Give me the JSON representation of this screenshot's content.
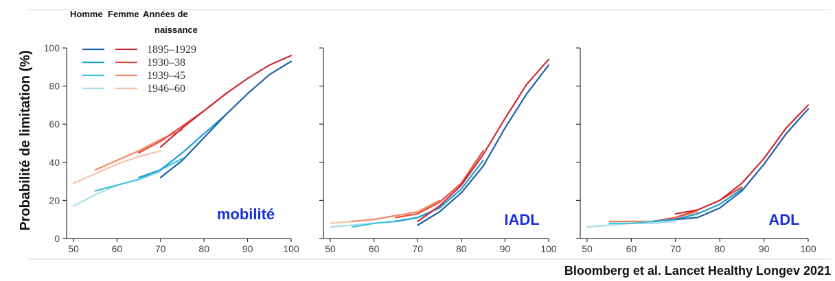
{
  "y_axis_label": "Probabilité de limitation (%)",
  "citation": "Bloomberg et al. Lancet Healthy Longev 2021",
  "legend": {
    "header_men": "Homme",
    "header_women": "Femme",
    "header_cohort_line1": "Années de",
    "header_cohort_line2": "naissance",
    "rows": [
      {
        "cohort": "1895–1929",
        "men_color": "#1f5fa8",
        "women_color": "#cc2a36"
      },
      {
        "cohort": "1930–38",
        "men_color": "#1aa0cf",
        "women_color": "#e8473b"
      },
      {
        "cohort": "1939–45",
        "men_color": "#3fc3db",
        "women_color": "#f08a66"
      },
      {
        "cohort": "1946–60",
        "men_color": "#a9dcee",
        "women_color": "#f7c2a8"
      }
    ]
  },
  "chart_data": [
    {
      "type": "line",
      "panel_label": "mobilité",
      "xlim": [
        50,
        100
      ],
      "ylim": [
        0,
        100
      ],
      "x_ticks": [
        50,
        60,
        70,
        80,
        90,
        100
      ],
      "y_ticks": [
        0,
        20,
        40,
        60,
        80,
        100
      ],
      "series": [
        {
          "sex": "men",
          "cohort": "1895–1929",
          "color": "#1f5fa8",
          "points": [
            [
              70,
              32
            ],
            [
              75,
              41
            ],
            [
              80,
              53
            ],
            [
              85,
              65
            ],
            [
              90,
              76
            ],
            [
              95,
              86
            ],
            [
              100,
              93
            ]
          ]
        },
        {
          "sex": "women",
          "cohort": "1895–1929",
          "color": "#cc2a36",
          "points": [
            [
              70,
              48
            ],
            [
              75,
              58
            ],
            [
              80,
              67
            ],
            [
              85,
              76
            ],
            [
              90,
              84
            ],
            [
              95,
              91
            ],
            [
              100,
              96
            ]
          ]
        },
        {
          "sex": "men",
          "cohort": "1930–38",
          "color": "#1aa0cf",
          "points": [
            [
              65,
              32
            ],
            [
              70,
              36
            ],
            [
              75,
              45
            ],
            [
              80,
              55
            ],
            [
              85,
              65
            ]
          ]
        },
        {
          "sex": "women",
          "cohort": "1930–38",
          "color": "#e8473b",
          "points": [
            [
              65,
              45
            ],
            [
              70,
              51
            ],
            [
              75,
              59
            ],
            [
              80,
              67
            ],
            [
              85,
              76
            ]
          ]
        },
        {
          "sex": "men",
          "cohort": "1939–45",
          "color": "#3fc3db",
          "points": [
            [
              55,
              25
            ],
            [
              60,
              28
            ],
            [
              65,
              31
            ],
            [
              70,
              36
            ],
            [
              75,
              42
            ]
          ]
        },
        {
          "sex": "women",
          "cohort": "1939–45",
          "color": "#f08a66",
          "points": [
            [
              55,
              36
            ],
            [
              60,
              41
            ],
            [
              65,
              46
            ],
            [
              70,
              52
            ],
            [
              75,
              57
            ]
          ]
        },
        {
          "sex": "men",
          "cohort": "1946–60",
          "color": "#a9dcee",
          "points": [
            [
              50,
              17
            ],
            [
              55,
              23
            ],
            [
              60,
              28
            ],
            [
              65,
              31
            ],
            [
              70,
              35
            ]
          ]
        },
        {
          "sex": "women",
          "cohort": "1946–60",
          "color": "#f7c2a8",
          "points": [
            [
              50,
              29
            ],
            [
              55,
              34
            ],
            [
              60,
              39
            ],
            [
              65,
              43
            ],
            [
              70,
              46
            ]
          ]
        }
      ]
    },
    {
      "type": "line",
      "panel_label": "IADL",
      "xlim": [
        50,
        100
      ],
      "ylim": [
        0,
        100
      ],
      "x_ticks": [
        50,
        60,
        70,
        80,
        90,
        100
      ],
      "y_ticks": [
        0,
        20,
        40,
        60,
        80,
        100
      ],
      "series": [
        {
          "sex": "men",
          "cohort": "1895–1929",
          "color": "#1f5fa8",
          "points": [
            [
              70,
              7
            ],
            [
              75,
              14
            ],
            [
              80,
              24
            ],
            [
              85,
              38
            ],
            [
              90,
              58
            ],
            [
              95,
              76
            ],
            [
              100,
              91
            ]
          ]
        },
        {
          "sex": "women",
          "cohort": "1895–1929",
          "color": "#cc2a36",
          "points": [
            [
              70,
              9
            ],
            [
              75,
              17
            ],
            [
              80,
              28
            ],
            [
              85,
              44
            ],
            [
              90,
              63
            ],
            [
              95,
              81
            ],
            [
              100,
              94
            ]
          ]
        },
        {
          "sex": "men",
          "cohort": "1930–38",
          "color": "#1aa0cf",
          "points": [
            [
              65,
              9
            ],
            [
              70,
              11
            ],
            [
              75,
              16
            ],
            [
              80,
              26
            ],
            [
              85,
              41
            ]
          ]
        },
        {
          "sex": "women",
          "cohort": "1930–38",
          "color": "#e8473b",
          "points": [
            [
              65,
              11
            ],
            [
              70,
              13
            ],
            [
              75,
              19
            ],
            [
              80,
              29
            ],
            [
              85,
              46
            ]
          ]
        },
        {
          "sex": "men",
          "cohort": "1939–45",
          "color": "#3fc3db",
          "points": [
            [
              55,
              6
            ],
            [
              60,
              8
            ],
            [
              65,
              9
            ],
            [
              70,
              11
            ],
            [
              75,
              16
            ]
          ]
        },
        {
          "sex": "women",
          "cohort": "1939–45",
          "color": "#f08a66",
          "points": [
            [
              55,
              9
            ],
            [
              60,
              10
            ],
            [
              65,
              12
            ],
            [
              70,
              14
            ],
            [
              75,
              20
            ]
          ]
        },
        {
          "sex": "men",
          "cohort": "1946–60",
          "color": "#a9dcee",
          "points": [
            [
              50,
              6
            ],
            [
              55,
              7
            ],
            [
              60,
              8
            ],
            [
              65,
              9
            ],
            [
              70,
              11
            ]
          ]
        },
        {
          "sex": "women",
          "cohort": "1946–60",
          "color": "#f7c2a8",
          "points": [
            [
              50,
              8
            ],
            [
              55,
              9
            ],
            [
              60,
              10
            ],
            [
              65,
              12
            ],
            [
              70,
              14
            ]
          ]
        }
      ]
    },
    {
      "type": "line",
      "panel_label": "ADL",
      "xlim": [
        50,
        100
      ],
      "ylim": [
        0,
        100
      ],
      "x_ticks": [
        50,
        60,
        70,
        80,
        90,
        100
      ],
      "y_ticks": [
        0,
        20,
        40,
        60,
        80,
        100
      ],
      "series": [
        {
          "sex": "men",
          "cohort": "1895–1929",
          "color": "#1f5fa8",
          "points": [
            [
              70,
              10
            ],
            [
              75,
              11
            ],
            [
              80,
              16
            ],
            [
              85,
              25
            ],
            [
              90,
              39
            ],
            [
              95,
              55
            ],
            [
              100,
              68
            ]
          ]
        },
        {
          "sex": "women",
          "cohort": "1895–1929",
          "color": "#cc2a36",
          "points": [
            [
              70,
              13
            ],
            [
              75,
              15
            ],
            [
              80,
              20
            ],
            [
              85,
              29
            ],
            [
              90,
              42
            ],
            [
              95,
              58
            ],
            [
              100,
              70
            ]
          ]
        },
        {
          "sex": "men",
          "cohort": "1930–38",
          "color": "#1aa0cf",
          "points": [
            [
              65,
              9
            ],
            [
              70,
              10
            ],
            [
              75,
              13
            ],
            [
              80,
              18
            ],
            [
              85,
              26
            ]
          ]
        },
        {
          "sex": "women",
          "cohort": "1930–38",
          "color": "#e8473b",
          "points": [
            [
              65,
              9
            ],
            [
              70,
              11
            ],
            [
              75,
              15
            ],
            [
              80,
              20
            ],
            [
              85,
              27
            ]
          ]
        },
        {
          "sex": "men",
          "cohort": "1939–45",
          "color": "#3fc3db",
          "points": [
            [
              55,
              8
            ],
            [
              60,
              8
            ],
            [
              65,
              9
            ],
            [
              70,
              10
            ],
            [
              75,
              13
            ]
          ]
        },
        {
          "sex": "women",
          "cohort": "1939–45",
          "color": "#f08a66",
          "points": [
            [
              55,
              9
            ],
            [
              60,
              9
            ],
            [
              65,
              9
            ],
            [
              70,
              11
            ],
            [
              75,
              14
            ]
          ]
        },
        {
          "sex": "men",
          "cohort": "1946–60",
          "color": "#a9dcee",
          "points": [
            [
              50,
              6
            ],
            [
              55,
              7
            ],
            [
              60,
              8
            ],
            [
              65,
              8
            ],
            [
              70,
              9
            ]
          ]
        },
        {
          "sex": "women",
          "cohort": "1946–60",
          "color": "#f7c2a8",
          "points": [
            [
              50,
              6
            ],
            [
              55,
              7
            ],
            [
              60,
              8
            ],
            [
              65,
              8
            ],
            [
              70,
              9
            ]
          ]
        }
      ]
    }
  ],
  "panel_label_color": "#1a2fd8"
}
